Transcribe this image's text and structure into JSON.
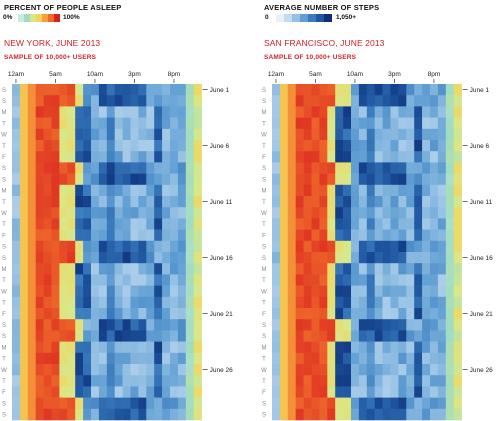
{
  "legends": {
    "sleep": {
      "title": "PERCENT OF PEOPLE ASLEEP",
      "min_label": "0%",
      "max_label": "100%"
    },
    "steps": {
      "title": "AVERAGE NUMBER OF STEPS",
      "min_label": "0",
      "max_label": "1,050+"
    }
  },
  "colors": {
    "sleep_scale": [
      "#c6ebe6",
      "#9fdcc0",
      "#d8e889",
      "#f3d35a",
      "#f5a03b",
      "#ef6a2a",
      "#d92020"
    ],
    "steps_scale": [
      "#e8f1fa",
      "#c3dbef",
      "#94c0e3",
      "#619fd3",
      "#3a7bbd",
      "#1f56a0",
      "#0c2f78"
    ],
    "title_red": "#d0202a"
  },
  "chart_data": [
    {
      "type": "heatmap",
      "title": "NEW YORK, JUNE 2013",
      "subtitle": "SAMPLE OF 10,000+ USERS",
      "x_ticks": [
        "12am",
        "5am",
        "10am",
        "3pm",
        "8pm"
      ],
      "x_tick_hours": [
        0,
        5,
        10,
        15,
        20
      ],
      "day_letters": [
        "S",
        "S",
        "M",
        "T",
        "W",
        "T",
        "F",
        "S",
        "S",
        "M",
        "T",
        "W",
        "T",
        "F",
        "S",
        "S",
        "M",
        "T",
        "W",
        "T",
        "F",
        "S",
        "S",
        "M",
        "T",
        "W",
        "T",
        "F",
        "S",
        "S"
      ],
      "date_labels": [
        {
          "day": 1,
          "label": "June 1"
        },
        {
          "day": 6,
          "label": "June 6"
        },
        {
          "day": 11,
          "label": "June 11"
        },
        {
          "day": 16,
          "label": "June 16"
        },
        {
          "day": 21,
          "label": "June 21"
        },
        {
          "day": 26,
          "label": "June 26"
        }
      ],
      "hours_per_day": 24,
      "start_weekday": "Saturday"
    },
    {
      "type": "heatmap",
      "title": "SAN FRANCISCO, JUNE 2013",
      "subtitle": "SAMPLE OF 10,000+ USERS",
      "x_ticks": [
        "12am",
        "5am",
        "10am",
        "3pm",
        "8pm"
      ],
      "x_tick_hours": [
        0,
        5,
        10,
        15,
        20
      ],
      "day_letters": [
        "S",
        "S",
        "M",
        "T",
        "W",
        "T",
        "F",
        "S",
        "S",
        "M",
        "T",
        "W",
        "T",
        "F",
        "S",
        "S",
        "M",
        "T",
        "W",
        "T",
        "F",
        "S",
        "S",
        "M",
        "T",
        "W",
        "T",
        "F",
        "S",
        "S"
      ],
      "date_labels": [
        {
          "day": 1,
          "label": "June 1"
        },
        {
          "day": 6,
          "label": "June 6"
        },
        {
          "day": 11,
          "label": "June 11"
        },
        {
          "day": 16,
          "label": "June 16"
        },
        {
          "day": 21,
          "label": "June 21"
        },
        {
          "day": 26,
          "label": "June 26"
        }
      ],
      "hours_per_day": 24,
      "start_weekday": "Saturday"
    }
  ]
}
